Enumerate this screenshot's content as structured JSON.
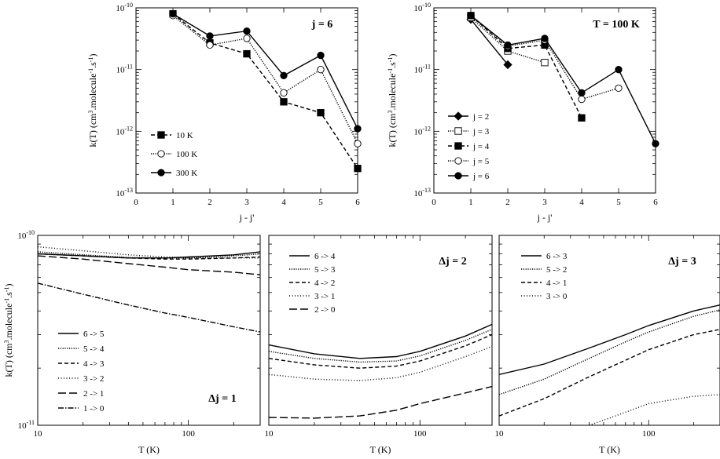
{
  "figure": {
    "panels": [
      {
        "id": "a",
        "corner_label": "j = 6",
        "xlabel": "j - j'",
        "ylabel": "k(T)  (cm3.molecule-1.s-1)"
      },
      {
        "id": "b",
        "corner_label": "T = 100 K",
        "xlabel": "j - j'",
        "ylabel": "k(T)  (cm3.molecule-1.s-1)"
      },
      {
        "id": "c",
        "corner_label": "Δj = 1",
        "xlabel": "T  (K)",
        "ylabel": "k(T)  (cm3.molecule-1.s-1)"
      },
      {
        "id": "d",
        "corner_label": "Δj = 2",
        "xlabel": "T  (K)"
      },
      {
        "id": "e",
        "corner_label": "Δj = 3",
        "xlabel": "T  (K)"
      }
    ]
  },
  "chart_data": [
    {
      "type": "line",
      "corner_label": "j = 6",
      "xlabel": "j - j'",
      "ylabel": "k(T)  (cm3.molecule-1.s-1)",
      "xlim": [
        0,
        6
      ],
      "ylim": [
        1e-13,
        1e-10
      ],
      "yscale": "log",
      "xticks": [
        "0",
        "1",
        "2",
        "3",
        "4",
        "5",
        "6"
      ],
      "yticks": [
        "10-13",
        "10-12",
        "10-11",
        "10-10"
      ],
      "legend_position": "lower-left",
      "series": [
        {
          "name": "10 K",
          "marker": "filled-square",
          "dash": "dashed",
          "x": [
            1,
            2,
            3,
            4,
            5,
            6
          ],
          "y": [
            8e-11,
            2.7e-11,
            1.8e-11,
            3e-12,
            2e-12,
            2.5e-13
          ]
        },
        {
          "name": "100 K",
          "marker": "open-circle",
          "dash": "dotted",
          "x": [
            1,
            2,
            3,
            4,
            5,
            6
          ],
          "y": [
            7.5e-11,
            2.5e-11,
            3.2e-11,
            4.2e-12,
            1e-11,
            6.3e-13
          ]
        },
        {
          "name": "300 K",
          "marker": "filled-circle",
          "dash": "solid",
          "x": [
            1,
            2,
            3,
            4,
            5,
            6
          ],
          "y": [
            8e-11,
            3.5e-11,
            4.2e-11,
            8e-12,
            1.7e-11,
            1.1e-12
          ]
        }
      ]
    },
    {
      "type": "line",
      "corner_label": "T = 100 K",
      "xlabel": "j - j'",
      "ylabel": "k(T)  (cm3.molecule-1.s-1)",
      "xlim": [
        0,
        6
      ],
      "ylim": [
        1e-13,
        1e-10
      ],
      "yscale": "log",
      "xticks": [
        "0",
        "1",
        "2",
        "3",
        "4",
        "5",
        "6"
      ],
      "yticks": [
        "10-13",
        "10-12",
        "10-11",
        "10-10"
      ],
      "legend_position": "lower-left",
      "series": [
        {
          "name": "j = 2",
          "marker": "filled-diamond",
          "dash": "solid",
          "x": [
            1,
            2
          ],
          "y": [
            6.5e-11,
            1.2e-11
          ]
        },
        {
          "name": "j = 3",
          "marker": "open-square",
          "dash": "dotted",
          "x": [
            1,
            2,
            3
          ],
          "y": [
            7e-11,
            2e-11,
            1.3e-11
          ]
        },
        {
          "name": "j = 4",
          "marker": "filled-square",
          "dash": "dashed",
          "x": [
            1,
            2,
            3,
            4
          ],
          "y": [
            7.5e-11,
            2.2e-11,
            2.5e-11,
            1.65e-12
          ]
        },
        {
          "name": "j = 5",
          "marker": "open-circle",
          "dash": "dotted",
          "x": [
            1,
            2,
            3,
            4,
            5
          ],
          "y": [
            7.5e-11,
            2.4e-11,
            3e-11,
            3.3e-12,
            5e-12
          ]
        },
        {
          "name": "j = 6",
          "marker": "filled-circle",
          "dash": "solid",
          "x": [
            1,
            2,
            3,
            4,
            5,
            6
          ],
          "y": [
            7.5e-11,
            2.5e-11,
            3.2e-11,
            4.2e-12,
            1e-11,
            6.3e-13
          ]
        }
      ]
    },
    {
      "type": "line",
      "corner_label": "Δj = 1",
      "xlabel": "T  (K)",
      "ylabel": "k(T)  (cm3.molecule-1.s-1)",
      "xlim": [
        10,
        300
      ],
      "ylim": [
        1e-11,
        1e-10
      ],
      "xscale": "log",
      "yscale": "log",
      "xticks": [
        "10",
        "100"
      ],
      "yticks": [
        "10-11",
        "10-10"
      ],
      "legend_position": "lower-left",
      "series": [
        {
          "name": "6 -> 5",
          "dash": "solid",
          "x": [
            10,
            20,
            40,
            70,
            100,
            200,
            300
          ],
          "y": [
            8e-11,
            7.8e-11,
            7.6e-11,
            7.6e-11,
            7.7e-11,
            7.9e-11,
            8.2e-11
          ]
        },
        {
          "name": "5 -> 4",
          "dash": "dotted",
          "x": [
            10,
            20,
            40,
            70,
            100,
            200,
            300
          ],
          "y": [
            8.2e-11,
            7.9e-11,
            7.65e-11,
            7.6e-11,
            7.6e-11,
            7.8e-11,
            8e-11
          ]
        },
        {
          "name": "4 -> 3",
          "dash": "dashed",
          "x": [
            10,
            20,
            40,
            70,
            100,
            200,
            300
          ],
          "y": [
            8e-11,
            7.8e-11,
            7.6e-11,
            7.5e-11,
            7.5e-11,
            7.6e-11,
            7.7e-11
          ]
        },
        {
          "name": "3 -> 2",
          "dash": "dotted-dense",
          "x": [
            10,
            20,
            40,
            70,
            100,
            200,
            300
          ],
          "y": [
            8.7e-11,
            8.3e-11,
            7.9e-11,
            7.7e-11,
            7.6e-11,
            7.6e-11,
            7.6e-11
          ]
        },
        {
          "name": "2 -> 1",
          "dash": "long-dash",
          "x": [
            10,
            20,
            40,
            70,
            100,
            200,
            300
          ],
          "y": [
            7.8e-11,
            7.5e-11,
            7.1e-11,
            6.8e-11,
            6.6e-11,
            6.4e-11,
            6.2e-11
          ]
        },
        {
          "name": "1 -> 0",
          "dash": "dash-dot",
          "x": [
            10,
            20,
            40,
            70,
            100,
            200,
            300
          ],
          "y": [
            5.6e-11,
            4.9e-11,
            4.3e-11,
            3.9e-11,
            3.7e-11,
            3.3e-11,
            3.1e-11
          ]
        }
      ]
    },
    {
      "type": "line",
      "corner_label": "Δj = 2",
      "xlabel": "T  (K)",
      "xlim": [
        10,
        300
      ],
      "ylim": [
        1e-11,
        1e-10
      ],
      "xscale": "log",
      "yscale": "log",
      "xticks": [
        "10",
        "100"
      ],
      "legend_position": "upper-left",
      "series": [
        {
          "name": "6 -> 4",
          "dash": "solid",
          "x": [
            10,
            20,
            40,
            70,
            100,
            200,
            300
          ],
          "y": [
            2.65e-11,
            2.38e-11,
            2.25e-11,
            2.3e-11,
            2.45e-11,
            2.95e-11,
            3.4e-11
          ]
        },
        {
          "name": "5 -> 3",
          "dash": "dotted",
          "x": [
            10,
            20,
            40,
            70,
            100,
            200,
            300
          ],
          "y": [
            2.45e-11,
            2.25e-11,
            2.15e-11,
            2.18e-11,
            2.32e-11,
            2.8e-11,
            3.2e-11
          ]
        },
        {
          "name": "4 -> 2",
          "dash": "dashed",
          "x": [
            10,
            20,
            40,
            70,
            100,
            200,
            300
          ],
          "y": [
            2.25e-11,
            2.08e-11,
            2e-11,
            2.05e-11,
            2.18e-11,
            2.62e-11,
            3e-11
          ]
        },
        {
          "name": "3 -> 1",
          "dash": "dotted-dense",
          "x": [
            10,
            20,
            40,
            70,
            100,
            200,
            300
          ],
          "y": [
            1.85e-11,
            1.75e-11,
            1.72e-11,
            1.78e-11,
            1.9e-11,
            2.3e-11,
            2.6e-11
          ]
        },
        {
          "name": "2 -> 0",
          "dash": "long-dash",
          "x": [
            10,
            20,
            40,
            70,
            100,
            200,
            300
          ],
          "y": [
            1.1e-11,
            1.09e-11,
            1.12e-11,
            1.2e-11,
            1.3e-11,
            1.48e-11,
            1.6e-11
          ]
        }
      ]
    },
    {
      "type": "line",
      "corner_label": "Δj = 3",
      "xlabel": "T  (K)",
      "xlim": [
        10,
        300
      ],
      "ylim": [
        1e-11,
        1e-10
      ],
      "xscale": "log",
      "yscale": "log",
      "xticks": [
        "10",
        "100"
      ],
      "legend_position": "upper-left",
      "series": [
        {
          "name": "6 -> 3",
          "dash": "solid",
          "x": [
            10,
            20,
            40,
            70,
            100,
            200,
            300
          ],
          "y": [
            1.85e-11,
            2.1e-11,
            2.55e-11,
            3e-11,
            3.35e-11,
            4e-11,
            4.3e-11
          ]
        },
        {
          "name": "5 -> 2",
          "dash": "dotted",
          "x": [
            10,
            20,
            40,
            70,
            100,
            200,
            300
          ],
          "y": [
            1.45e-11,
            1.75e-11,
            2.25e-11,
            2.75e-11,
            3.1e-11,
            3.75e-11,
            4.05e-11
          ]
        },
        {
          "name": "4 -> 1",
          "dash": "dashed",
          "x": [
            10,
            20,
            40,
            70,
            100,
            200,
            300
          ],
          "y": [
            1.12e-11,
            1.38e-11,
            1.8e-11,
            2.2e-11,
            2.5e-11,
            3e-11,
            3.2e-11
          ]
        },
        {
          "name": "3 -> 0",
          "dash": "dotted-dense",
          "x": [
            40,
            60,
            100,
            200,
            300
          ],
          "y": [
            1e-11,
            1.12e-11,
            1.3e-11,
            1.42e-11,
            1.45e-11
          ]
        }
      ]
    }
  ]
}
